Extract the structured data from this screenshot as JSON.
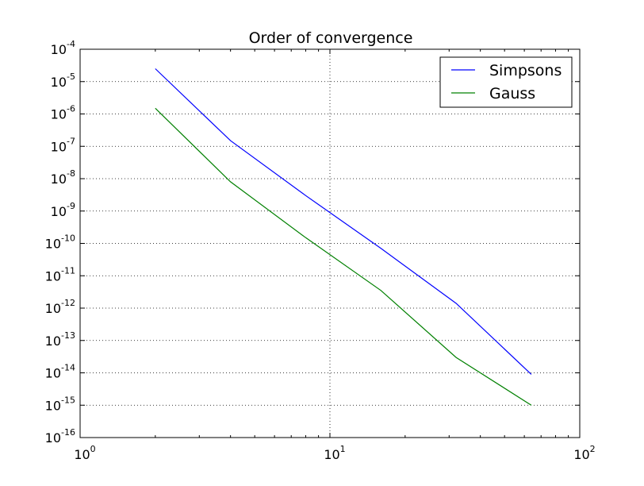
{
  "chart_data": {
    "type": "line",
    "title": "Order of convergence",
    "xlabel": "",
    "ylabel": "",
    "xscale": "log",
    "yscale": "log",
    "xlim": [
      1,
      100
    ],
    "ylim": [
      1e-16,
      0.0001
    ],
    "grid": true,
    "legend_position": "top-right",
    "x_ticks": [
      {
        "base": "10",
        "exp": "0",
        "value": 1
      },
      {
        "base": "10",
        "exp": "1",
        "value": 10
      },
      {
        "base": "10",
        "exp": "2",
        "value": 100
      }
    ],
    "y_ticks": [
      {
        "base": "10",
        "exp": "-4",
        "value": 0.0001
      },
      {
        "base": "10",
        "exp": "-5",
        "value": 1e-05
      },
      {
        "base": "10",
        "exp": "-6",
        "value": 1e-06
      },
      {
        "base": "10",
        "exp": "-7",
        "value": 1e-07
      },
      {
        "base": "10",
        "exp": "-8",
        "value": 1e-08
      },
      {
        "base": "10",
        "exp": "-9",
        "value": 1e-09
      },
      {
        "base": "10",
        "exp": "-10",
        "value": 1e-10
      },
      {
        "base": "10",
        "exp": "-11",
        "value": 1e-11
      },
      {
        "base": "10",
        "exp": "-12",
        "value": 1e-12
      },
      {
        "base": "10",
        "exp": "-13",
        "value": 1e-13
      },
      {
        "base": "10",
        "exp": "-14",
        "value": 1e-14
      },
      {
        "base": "10",
        "exp": "-15",
        "value": 1e-15
      },
      {
        "base": "10",
        "exp": "-16",
        "value": 1e-16
      }
    ],
    "x": [
      2,
      4,
      8,
      16,
      32,
      64
    ],
    "series": [
      {
        "name": "Simpsons",
        "color": "#0000ff",
        "values": [
          2.5e-05,
          1.5e-07,
          3e-09,
          7e-11,
          1.4e-12,
          9e-15
        ]
      },
      {
        "name": "Gauss",
        "color": "#008000",
        "values": [
          1.5e-06,
          8e-09,
          1.5e-10,
          3.5e-12,
          3e-14,
          1e-15
        ]
      }
    ]
  }
}
